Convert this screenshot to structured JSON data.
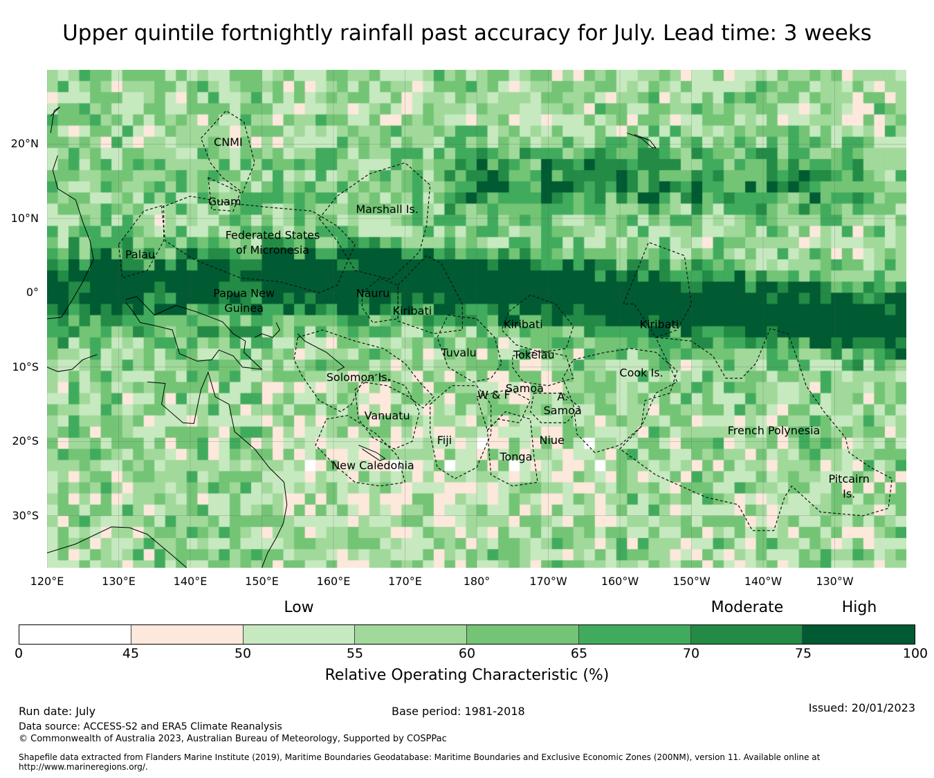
{
  "title": "Upper quintile fortnightly rainfall past accuracy for July. Lead time: 3 weeks",
  "map": {
    "lon_range": [
      120,
      240
    ],
    "lat_range": [
      -37,
      30
    ],
    "lat_ticks": [
      {
        "value": 20,
        "label": "20°N"
      },
      {
        "value": 10,
        "label": "10°N"
      },
      {
        "value": 0,
        "label": "0°"
      },
      {
        "value": -10,
        "label": "10°S"
      },
      {
        "value": -20,
        "label": "20°S"
      },
      {
        "value": -30,
        "label": "30°S"
      }
    ],
    "lon_ticks": [
      {
        "value": 120,
        "label": "120°E"
      },
      {
        "value": 130,
        "label": "130°E"
      },
      {
        "value": 140,
        "label": "140°E"
      },
      {
        "value": 150,
        "label": "150°E"
      },
      {
        "value": 160,
        "label": "160°E"
      },
      {
        "value": 170,
        "label": "170°E"
      },
      {
        "value": 180,
        "label": "180°"
      },
      {
        "value": 190,
        "label": "170°W"
      },
      {
        "value": 200,
        "label": "160°W"
      },
      {
        "value": 210,
        "label": "150°W"
      },
      {
        "value": 220,
        "label": "140°W"
      },
      {
        "value": 230,
        "label": "130°W"
      }
    ],
    "regions": [
      {
        "name": "CNMI",
        "lon": 145.3,
        "lat": 20.3
      },
      {
        "name": "Guam",
        "lon": 144.8,
        "lat": 12.3
      },
      {
        "name": "Marshall Is.",
        "lon": 167.5,
        "lat": 11.3
      },
      {
        "name": "Federated States",
        "lon": 151.5,
        "lat": 7.8
      },
      {
        "name": "of Micronesia",
        "lon": 151.5,
        "lat": 5.8
      },
      {
        "name": "Palau",
        "lon": 133,
        "lat": 5.2
      },
      {
        "name": "Papua New",
        "lon": 147.5,
        "lat": 0
      },
      {
        "name": "Guinea",
        "lon": 147.5,
        "lat": -2
      },
      {
        "name": "Nauru",
        "lon": 165.5,
        "lat": 0
      },
      {
        "name": "Kiribati",
        "lon": 171,
        "lat": -2.4
      },
      {
        "name": "Kiribati",
        "lon": 186.5,
        "lat": -4.2
      },
      {
        "name": "Kiribati",
        "lon": 205.5,
        "lat": -4.2
      },
      {
        "name": "Tuvalu",
        "lon": 177.5,
        "lat": -8
      },
      {
        "name": "Tokelau",
        "lon": 188,
        "lat": -8.3
      },
      {
        "name": "Cook Is.",
        "lon": 203,
        "lat": -10.7
      },
      {
        "name": "Solomon Is.",
        "lon": 163.5,
        "lat": -11.3
      },
      {
        "name": "Samoa",
        "lon": 186.7,
        "lat": -12.8
      },
      {
        "name": "W & F",
        "lon": 182.4,
        "lat": -13.7
      },
      {
        "name": "A.",
        "lon": 192,
        "lat": -13.9
      },
      {
        "name": "Samoa",
        "lon": 192,
        "lat": -15.8
      },
      {
        "name": "Vanuatu",
        "lon": 167.5,
        "lat": -16.5
      },
      {
        "name": "Fiji",
        "lon": 175.5,
        "lat": -19.8
      },
      {
        "name": "Niue",
        "lon": 190.5,
        "lat": -19.8
      },
      {
        "name": "French Polynesia",
        "lon": 221.5,
        "lat": -18.5
      },
      {
        "name": "Tonga",
        "lon": 185.5,
        "lat": -22
      },
      {
        "name": "New Caledonia",
        "lon": 165.5,
        "lat": -23.2
      },
      {
        "name": "Pitcairn",
        "lon": 232,
        "lat": -25
      },
      {
        "name": "Is.",
        "lon": 232,
        "lat": -27
      }
    ]
  },
  "legend": {
    "categories": [
      {
        "label": "Low",
        "value": 52.5
      },
      {
        "label": "Moderate",
        "value": 72.5
      },
      {
        "label": "High",
        "value": 87.5
      }
    ],
    "boundaries": [
      0,
      45,
      50,
      55,
      60,
      65,
      70,
      75,
      100
    ],
    "colors": [
      "#ffffff",
      "#fde8dc",
      "#c7e9c0",
      "#a1d99b",
      "#74c476",
      "#41ab5d",
      "#238b45",
      "#005a32"
    ],
    "title": "Relative Operating Characteristic (%)"
  },
  "footer": {
    "run_date": "Run date: July",
    "base_period": "Base period: 1981-2018",
    "issued": "Issued: 20/01/2023",
    "data_source": "Data source: ACCESS-S2 and ERA5 Climate Reanalysis",
    "copyright": "© Commonwealth of Australia 2023, Australian Bureau of Meteorology, Supported by COSPPac",
    "shapefile": "Shapefile data extracted from Flanders Marine Institute (2019), Maritime Boundaries Geodatabase: Maritime Boundaries and Exclusive Economic Zones (200NM), version 11. Available online at http://www.marineregions.org/."
  }
}
